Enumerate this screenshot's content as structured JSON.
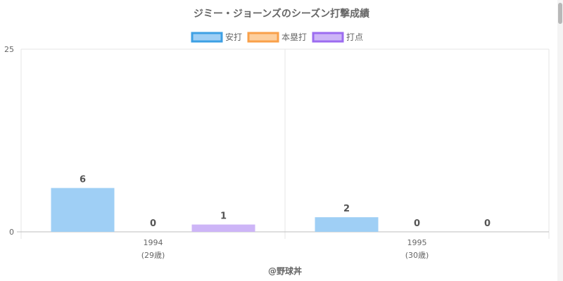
{
  "chart_data": {
    "type": "bar",
    "title": "ジミー・ジョーンズのシーズン打撃成績",
    "categories": [
      {
        "year": "1994",
        "age": "(29歳)"
      },
      {
        "year": "1995",
        "age": "(30歳)"
      }
    ],
    "series": [
      {
        "name": "安打",
        "values": [
          6,
          2
        ],
        "color": "#9fcff5",
        "border": "#3ea0e4"
      },
      {
        "name": "本塁打",
        "values": [
          0,
          0
        ],
        "color": "#fdcf9e",
        "border": "#f9a04a"
      },
      {
        "name": "打点",
        "values": [
          1,
          0
        ],
        "color": "#cdb5f7",
        "border": "#9c6cf0"
      }
    ],
    "ylim": [
      0,
      25
    ],
    "yticks": [
      "0",
      "25"
    ],
    "grid": true,
    "legend": "top-center"
  },
  "credit": "@野球丼"
}
